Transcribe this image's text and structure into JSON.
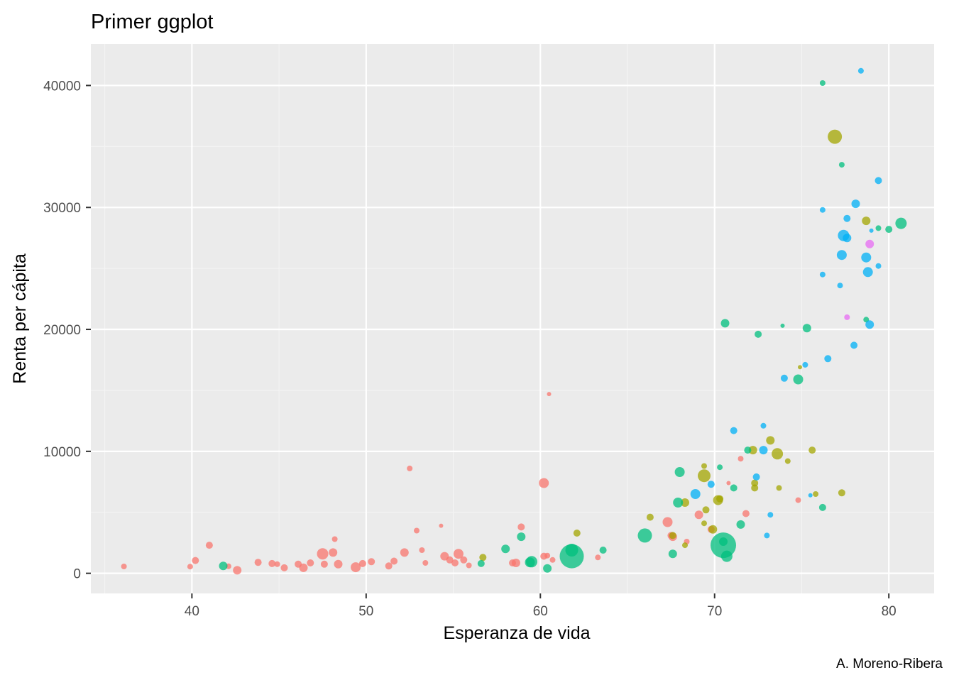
{
  "chart_data": {
    "type": "scatter",
    "title": "Primer ggplot",
    "xlabel": "Esperanza de vida",
    "ylabel": "Renta per cápita",
    "caption": "A. Moreno-Ribera",
    "xlim": [
      34.2,
      82.6
    ],
    "ylim": [
      -1650,
      43400
    ],
    "x_ticks": [
      40,
      50,
      60,
      70,
      80
    ],
    "x_tick_labels": [
      "40",
      "50",
      "60",
      "70",
      "80"
    ],
    "y_ticks": [
      0,
      10000,
      20000,
      30000,
      40000
    ],
    "y_tick_labels": [
      "0",
      "10000",
      "20000",
      "30000",
      "40000"
    ],
    "grid": true,
    "legend": "none",
    "size_encoding": "point size varies by a third variable (no legend shown)",
    "colors": {
      "panel_background": "#ebebeb",
      "grid_major": "#ffffff",
      "series_red": "#F8766D",
      "series_olive": "#A3A500",
      "series_green": "#00BF7D",
      "series_blue": "#00B0F6",
      "series_pink": "#E76BF3"
    },
    "series": [
      {
        "color": "#F8766D",
        "points": [
          [
            36.1,
            560,
            4
          ],
          [
            39.9,
            550,
            4
          ],
          [
            40.2,
            1050,
            5
          ],
          [
            41.0,
            2300,
            5
          ],
          [
            42.1,
            580,
            4
          ],
          [
            42.6,
            250,
            6
          ],
          [
            43.8,
            900,
            5
          ],
          [
            44.6,
            800,
            5
          ],
          [
            44.9,
            750,
            4
          ],
          [
            45.3,
            450,
            5
          ],
          [
            46.1,
            750,
            5
          ],
          [
            46.4,
            450,
            6
          ],
          [
            46.8,
            850,
            5
          ],
          [
            47.5,
            1600,
            8
          ],
          [
            47.6,
            750,
            5
          ],
          [
            48.1,
            1700,
            6
          ],
          [
            48.2,
            2800,
            4
          ],
          [
            48.4,
            750,
            6
          ],
          [
            49.4,
            500,
            7
          ],
          [
            49.8,
            800,
            5
          ],
          [
            50.3,
            950,
            5
          ],
          [
            51.3,
            600,
            5
          ],
          [
            51.6,
            1000,
            5
          ],
          [
            52.2,
            1700,
            6
          ],
          [
            52.5,
            8600,
            4
          ],
          [
            52.9,
            3500,
            4
          ],
          [
            53.2,
            1900,
            4
          ],
          [
            53.4,
            850,
            4
          ],
          [
            54.3,
            3900,
            3
          ],
          [
            54.5,
            1400,
            6
          ],
          [
            54.8,
            1100,
            5
          ],
          [
            55.1,
            850,
            5
          ],
          [
            55.3,
            1600,
            7
          ],
          [
            55.6,
            1100,
            5
          ],
          [
            55.9,
            650,
            4
          ],
          [
            58.4,
            850,
            5
          ],
          [
            58.6,
            850,
            6
          ],
          [
            58.9,
            3800,
            5
          ],
          [
            60.2,
            7400,
            7
          ],
          [
            60.2,
            1400,
            5
          ],
          [
            60.4,
            1450,
            4
          ],
          [
            60.5,
            14700,
            3
          ],
          [
            60.7,
            1100,
            4
          ],
          [
            63.3,
            1300,
            4
          ],
          [
            67.3,
            4200,
            7
          ],
          [
            67.5,
            3100,
            5
          ],
          [
            67.6,
            3000,
            6
          ],
          [
            68.4,
            2600,
            4
          ],
          [
            69.1,
            4800,
            6
          ],
          [
            69.8,
            3600,
            5
          ],
          [
            70.8,
            7400,
            3
          ],
          [
            71.5,
            9400,
            4
          ],
          [
            71.8,
            4900,
            5
          ],
          [
            74.8,
            6000,
            4
          ]
        ]
      },
      {
        "color": "#A3A500",
        "points": [
          [
            56.7,
            1300,
            5
          ],
          [
            62.1,
            3300,
            5
          ],
          [
            66.3,
            4600,
            5
          ],
          [
            67.6,
            3100,
            5
          ],
          [
            68.3,
            2300,
            4
          ],
          [
            68.3,
            5800,
            6
          ],
          [
            69.4,
            8800,
            4
          ],
          [
            69.4,
            4100,
            4
          ],
          [
            69.4,
            8000,
            9
          ],
          [
            69.5,
            5200,
            5
          ],
          [
            69.9,
            3600,
            6
          ],
          [
            70.2,
            6000,
            7
          ],
          [
            70.3,
            6100,
            5
          ],
          [
            72.2,
            10100,
            6
          ],
          [
            72.3,
            7400,
            5
          ],
          [
            72.3,
            7000,
            5
          ],
          [
            73.2,
            10900,
            6
          ],
          [
            73.6,
            9800,
            8
          ],
          [
            73.7,
            7000,
            4
          ],
          [
            74.2,
            9200,
            4
          ],
          [
            74.9,
            16900,
            3
          ],
          [
            75.6,
            10100,
            5
          ],
          [
            75.8,
            6500,
            4
          ],
          [
            77.3,
            6600,
            5
          ],
          [
            76.9,
            35800,
            10
          ],
          [
            78.7,
            28900,
            6
          ]
        ]
      },
      {
        "color": "#00BF7D",
        "points": [
          [
            41.8,
            600,
            6
          ],
          [
            56.6,
            800,
            5
          ],
          [
            58.0,
            2000,
            6
          ],
          [
            58.9,
            3000,
            6
          ],
          [
            59.4,
            900,
            7
          ],
          [
            59.5,
            950,
            8
          ],
          [
            60.4,
            400,
            6
          ],
          [
            61.8,
            1400,
            17
          ],
          [
            61.8,
            1900,
            9
          ],
          [
            63.6,
            1900,
            5
          ],
          [
            66.0,
            3100,
            10
          ],
          [
            67.6,
            1600,
            6
          ],
          [
            67.9,
            5800,
            7
          ],
          [
            68.0,
            8300,
            7
          ],
          [
            70.3,
            8700,
            4
          ],
          [
            70.5,
            2300,
            18
          ],
          [
            70.5,
            2600,
            6
          ],
          [
            70.6,
            20500,
            6
          ],
          [
            70.7,
            1400,
            8
          ],
          [
            71.1,
            7000,
            5
          ],
          [
            71.5,
            4000,
            6
          ],
          [
            71.9,
            10100,
            5
          ],
          [
            72.5,
            19600,
            5
          ],
          [
            73.9,
            20300,
            3
          ],
          [
            74.8,
            15900,
            7
          ],
          [
            75.3,
            20100,
            6
          ],
          [
            76.2,
            5400,
            5
          ],
          [
            76.2,
            40200,
            4
          ],
          [
            77.3,
            33500,
            4
          ],
          [
            78.7,
            20800,
            4
          ],
          [
            79.4,
            28300,
            4
          ],
          [
            80.0,
            28200,
            5
          ],
          [
            80.7,
            28700,
            8
          ]
        ]
      },
      {
        "color": "#00B0F6",
        "points": [
          [
            68.9,
            6500,
            7
          ],
          [
            69.8,
            7300,
            5
          ],
          [
            72.4,
            7900,
            5
          ],
          [
            72.8,
            12100,
            4
          ],
          [
            72.8,
            10100,
            6
          ],
          [
            73.0,
            3100,
            4
          ],
          [
            73.2,
            4800,
            4
          ],
          [
            71.1,
            11700,
            5
          ],
          [
            74.0,
            16000,
            5
          ],
          [
            75.2,
            17100,
            4
          ],
          [
            75.5,
            6400,
            3
          ],
          [
            76.2,
            24500,
            4
          ],
          [
            76.2,
            29800,
            4
          ],
          [
            76.5,
            17600,
            5
          ],
          [
            77.2,
            23600,
            4
          ],
          [
            77.3,
            26100,
            7
          ],
          [
            77.4,
            27700,
            8
          ],
          [
            77.6,
            27500,
            6
          ],
          [
            77.6,
            29100,
            5
          ],
          [
            78.0,
            18700,
            5
          ],
          [
            78.1,
            30300,
            6
          ],
          [
            78.4,
            41200,
            4
          ],
          [
            78.7,
            25900,
            7
          ],
          [
            78.8,
            24700,
            7
          ],
          [
            78.9,
            20400,
            6
          ],
          [
            79.0,
            28100,
            3
          ],
          [
            79.4,
            25200,
            4
          ],
          [
            79.4,
            32200,
            5
          ]
        ]
      },
      {
        "color": "#E76BF3",
        "points": [
          [
            77.6,
            21000,
            4
          ],
          [
            78.9,
            27000,
            6
          ]
        ]
      }
    ]
  }
}
